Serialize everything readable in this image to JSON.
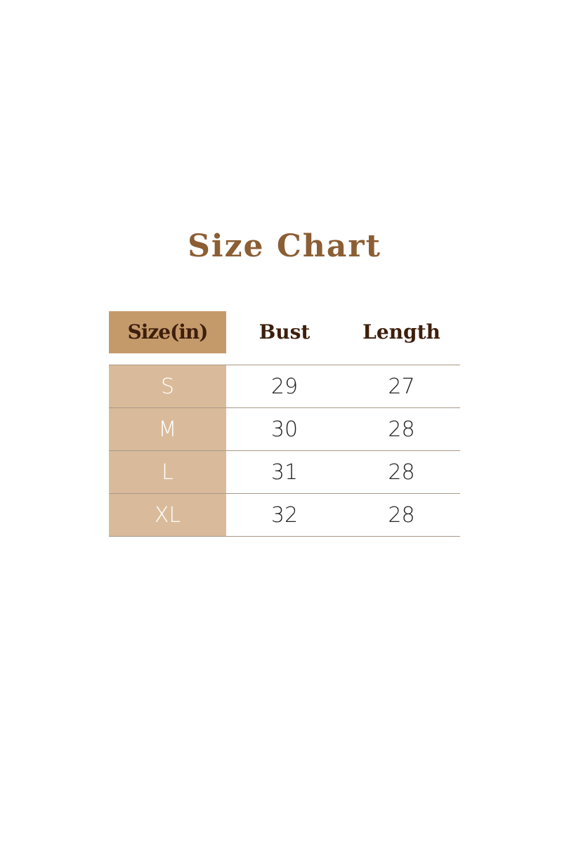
{
  "title": "Size Chart",
  "headers": [
    "Size(in)",
    "Bust",
    "Length"
  ],
  "rows": [
    {
      "size": "S",
      "bust": "29",
      "length": "27"
    },
    {
      "size": "M",
      "bust": "30",
      "length": "28"
    },
    {
      "size": "L",
      "bust": "31",
      "length": "28"
    },
    {
      "size": "XL",
      "bust": "32",
      "length": "28"
    }
  ],
  "colors": {
    "title": "#8b5e34",
    "header_cell": "#c59a6b",
    "size_column": "#d9bb9b",
    "header_text": "#3e1f0c"
  }
}
